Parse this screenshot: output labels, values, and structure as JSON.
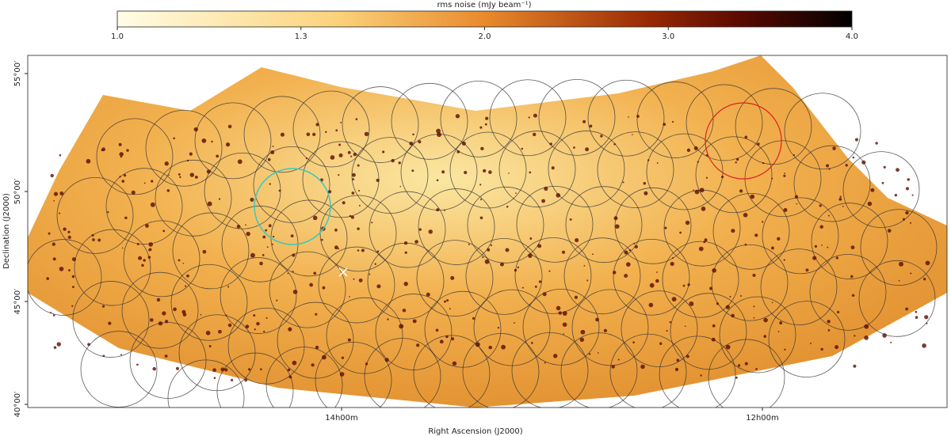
{
  "chart_data": {
    "type": "map",
    "colorbar": {
      "label": "rms noise (mJy beam⁻¹)",
      "ticks": [
        "1.0",
        "1.3",
        "2.0",
        "3.0",
        "4.0"
      ]
    },
    "y_label": "Declination (J2000)",
    "x_label": "Right Ascension (J2000)",
    "y_ticks": [
      "55°00′",
      "50°00′",
      "45°00′",
      "40°00′"
    ],
    "x_ticks": [
      "14h00m",
      "12h00m"
    ]
  }
}
